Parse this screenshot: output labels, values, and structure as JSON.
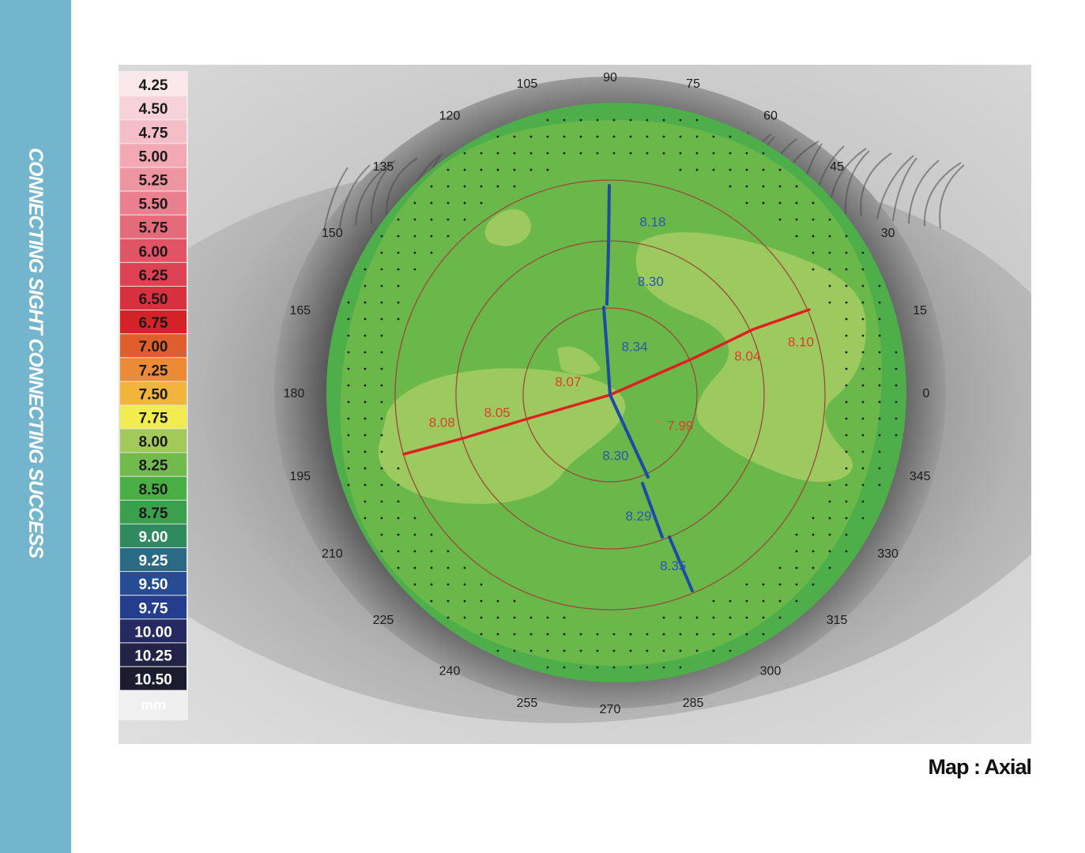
{
  "side_banner": {
    "text": "CONNECTING SIGHT  CONNECTING SUCCESS"
  },
  "caption": {
    "text": "Map : Axial"
  },
  "scale": {
    "unit": "mm",
    "entries": [
      {
        "label": "4.25",
        "color": "#fbe8ec"
      },
      {
        "label": "4.50",
        "color": "#f8d2da"
      },
      {
        "label": "4.75",
        "color": "#f5bec7"
      },
      {
        "label": "5.00",
        "color": "#f2a9b4"
      },
      {
        "label": "5.25",
        "color": "#ee95a2"
      },
      {
        "label": "5.50",
        "color": "#ea808f"
      },
      {
        "label": "5.75",
        "color": "#e56b7b"
      },
      {
        "label": "6.00",
        "color": "#e05566"
      },
      {
        "label": "6.25",
        "color": "#dc4252"
      },
      {
        "label": "6.50",
        "color": "#d8303e"
      },
      {
        "label": "6.75",
        "color": "#d42229"
      },
      {
        "label": "7.00",
        "color": "#e05d2c"
      },
      {
        "label": "7.25",
        "color": "#ec8a35"
      },
      {
        "label": "7.50",
        "color": "#f1b53d"
      },
      {
        "label": "7.75",
        "color": "#f2ec50"
      },
      {
        "label": "8.00",
        "color": "#a3c95a"
      },
      {
        "label": "8.25",
        "color": "#72b94e"
      },
      {
        "label": "8.50",
        "color": "#4aae47"
      },
      {
        "label": "8.75",
        "color": "#3aa04b"
      },
      {
        "label": "9.00",
        "color": "#2f8a5f"
      },
      {
        "label": "9.25",
        "color": "#2a6a84"
      },
      {
        "label": "9.50",
        "color": "#264d93"
      },
      {
        "label": "9.75",
        "color": "#243d8c"
      },
      {
        "label": "10.00",
        "color": "#252b60"
      },
      {
        "label": "10.25",
        "color": "#232347"
      },
      {
        "label": "10.50",
        "color": "#1d1b2e"
      }
    ]
  },
  "angle_labels": [
    "0",
    "15",
    "30",
    "45",
    "60",
    "75",
    "90",
    "105",
    "120",
    "135",
    "150",
    "165",
    "180",
    "195",
    "210",
    "225",
    "240",
    "255",
    "270",
    "285",
    "300",
    "315",
    "330",
    "345"
  ],
  "map_values": {
    "steep": [
      {
        "label": "8.10",
        "angle": 15,
        "r": 250
      },
      {
        "label": "8.04",
        "angle": 15,
        "r": 180
      },
      {
        "label": "8.07",
        "angle": 165,
        "r": 55
      },
      {
        "label": "8.05",
        "angle": 190,
        "r": 145
      },
      {
        "label": "8.08",
        "angle": 190,
        "r": 216
      },
      {
        "label": "7.99",
        "angle": 335,
        "r": 98
      }
    ],
    "flat": [
      {
        "label": "8.18",
        "angle": 76,
        "r": 223
      },
      {
        "label": "8.30",
        "angle": 70,
        "r": 150
      },
      {
        "label": "8.34",
        "angle": 62,
        "r": 66
      },
      {
        "label": "8.30",
        "angle": 275,
        "r": 80
      },
      {
        "label": "8.29",
        "angle": 283,
        "r": 160
      },
      {
        "label": "8.35",
        "angle": 290,
        "r": 233
      }
    ]
  },
  "colors": {
    "map_green": "#6ab84a",
    "light_green": "#9dca5e",
    "edge_green": "#4dae4a",
    "steep_red": "#e02020",
    "flat_blue": "#1e4aa8",
    "ring_brown": "#9a4a3c"
  }
}
